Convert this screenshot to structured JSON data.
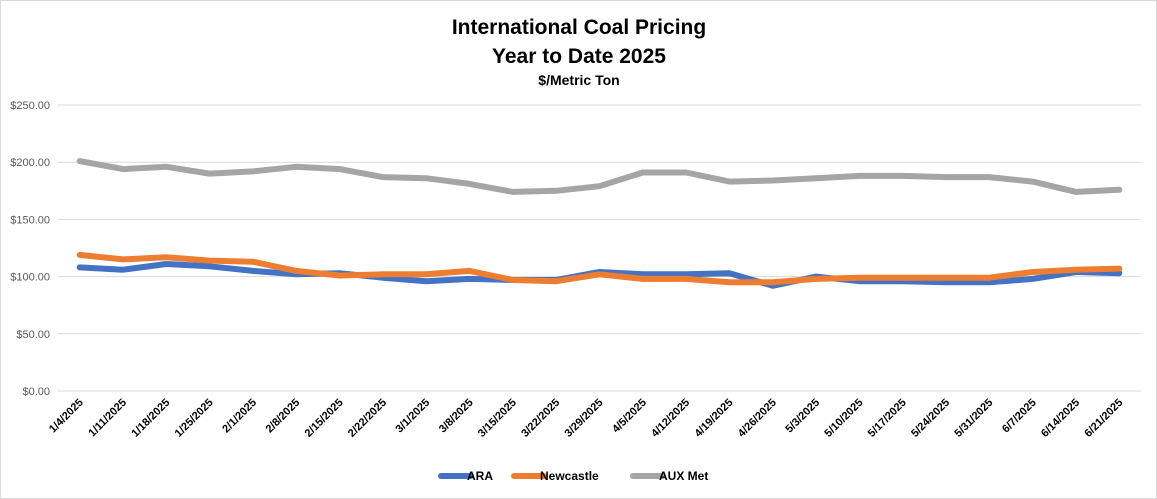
{
  "chart_data": {
    "type": "line",
    "title": "International Coal Pricing",
    "subtitle": "Year to Date 2025",
    "unit_label": "$/Metric Ton",
    "xlabel": "",
    "ylabel": "",
    "ylim": [
      0,
      250
    ],
    "y_ticks": [
      "$0.00",
      "$50.00",
      "$100.00",
      "$150.00",
      "$200.00",
      "$250.00"
    ],
    "y_tick_values": [
      0,
      50,
      100,
      150,
      200,
      250
    ],
    "grid": "horizontal",
    "legend_position": "bottom",
    "categories": [
      "1/4/2025",
      "1/11/2025",
      "1/18/2025",
      "1/25/2025",
      "2/1/2025",
      "2/8/2025",
      "2/15/2025",
      "2/22/2025",
      "3/1/2025",
      "3/8/2025",
      "3/15/2025",
      "3/22/2025",
      "3/29/2025",
      "4/5/2025",
      "4/12/2025",
      "4/19/2025",
      "4/26/2025",
      "5/3/2025",
      "5/10/2025",
      "5/17/2025",
      "5/24/2025",
      "5/31/2025",
      "6/7/2025",
      "6/14/2025",
      "6/21/2025"
    ],
    "series": [
      {
        "name": "ARA",
        "color": "#4472C4",
        "values": [
          108,
          106,
          111,
          109,
          105,
          102,
          103,
          99,
          96,
          98,
          97,
          97,
          104,
          102,
          102,
          103,
          92,
          100,
          96,
          96,
          95,
          95,
          98,
          104,
          103
        ]
      },
      {
        "name": "Newcastle",
        "color": "#ED7D31",
        "values": [
          119,
          115,
          117,
          114,
          113,
          105,
          101,
          102,
          102,
          105,
          97,
          96,
          102,
          98,
          98,
          95,
          95,
          98,
          99,
          99,
          99,
          99,
          104,
          106,
          107
        ]
      },
      {
        "name": "AUX Met",
        "color": "#A5A5A5",
        "values": [
          201,
          194,
          196,
          190,
          192,
          196,
          194,
          187,
          186,
          181,
          174,
          175,
          179,
          191,
          191,
          183,
          184,
          186,
          188,
          188,
          187,
          187,
          183,
          174,
          176
        ]
      }
    ]
  }
}
